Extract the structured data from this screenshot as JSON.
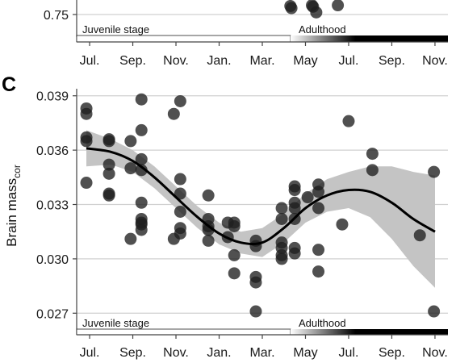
{
  "panel_top": {
    "y_tick_labels": [
      "0.75"
    ],
    "stage_labels": {
      "juvenile": "Juvenile stage",
      "adult": "Adulthood"
    },
    "x_tick_labels": [
      "Jul.",
      "Sep.",
      "Nov.",
      "Jan.",
      "Mar.",
      "May",
      "Jul.",
      "Sep.",
      "Nov."
    ]
  },
  "panel_c": {
    "letter": "C",
    "ylabel_main": "Brain mass",
    "ylabel_sub": "cor",
    "stage_labels": {
      "juvenile": "Juvenile stage",
      "adult": "Adulthood"
    }
  },
  "chart_data": [
    {
      "type": "scatter",
      "panel": "top (partially visible)",
      "ylim_visible": [
        0.745,
        0.76
      ],
      "y_ticks": [
        0.75
      ],
      "x": [
        9.3,
        9.35,
        10.3,
        10.35,
        10.5,
        11.5
      ],
      "y": [
        0.756,
        0.7545,
        0.7565,
        0.7555,
        0.7515,
        0.7565
      ]
    },
    {
      "type": "scatter",
      "panel": "C",
      "xlabel": "",
      "ylabel": "Brain masscor",
      "x_ticks": [
        0,
        2,
        4,
        6,
        8,
        10,
        12,
        14,
        16
      ],
      "x_tick_labels": [
        "Jul.",
        "Sep.",
        "Nov.",
        "Jan.",
        "Mar.",
        "May",
        "Jul.",
        "Sep.",
        "Nov."
      ],
      "y_ticks": [
        0.027,
        0.03,
        0.033,
        0.036,
        0.039
      ],
      "xlim": [
        -0.6,
        16.6
      ],
      "ylim": [
        0.0263,
        0.0393
      ],
      "grid": true,
      "points": [
        [
          -0.15,
          0.0383
        ],
        [
          -0.15,
          0.038
        ],
        [
          -0.15,
          0.0367
        ],
        [
          -0.15,
          0.0365
        ],
        [
          -0.15,
          0.0342
        ],
        [
          0.9,
          0.0366
        ],
        [
          0.9,
          0.0365
        ],
        [
          0.9,
          0.0352
        ],
        [
          0.9,
          0.0347
        ],
        [
          0.9,
          0.0336
        ],
        [
          0.9,
          0.0335
        ],
        [
          1.9,
          0.0365
        ],
        [
          1.9,
          0.035
        ],
        [
          1.9,
          0.0311
        ],
        [
          2.4,
          0.0388
        ],
        [
          2.4,
          0.0371
        ],
        [
          2.4,
          0.0355
        ],
        [
          2.4,
          0.0349
        ],
        [
          2.4,
          0.0331
        ],
        [
          2.4,
          0.0322
        ],
        [
          2.4,
          0.032
        ],
        [
          2.4,
          0.0319
        ],
        [
          2.4,
          0.0316
        ],
        [
          3.9,
          0.038
        ],
        [
          3.9,
          0.0311
        ],
        [
          4.2,
          0.0387
        ],
        [
          4.2,
          0.0344
        ],
        [
          4.2,
          0.0336
        ],
        [
          4.2,
          0.0326
        ],
        [
          4.2,
          0.0317
        ],
        [
          4.2,
          0.0314
        ],
        [
          5.5,
          0.0335
        ],
        [
          5.5,
          0.0322
        ],
        [
          5.5,
          0.0318
        ],
        [
          5.5,
          0.0316
        ],
        [
          5.5,
          0.031
        ],
        [
          6.4,
          0.032
        ],
        [
          6.4,
          0.0312
        ],
        [
          6.7,
          0.032
        ],
        [
          6.7,
          0.0318
        ],
        [
          6.7,
          0.0302
        ],
        [
          6.7,
          0.0292
        ],
        [
          7.7,
          0.031
        ],
        [
          7.7,
          0.0307
        ],
        [
          7.7,
          0.029
        ],
        [
          7.7,
          0.0287
        ],
        [
          7.7,
          0.0271
        ],
        [
          8.9,
          0.0328
        ],
        [
          8.9,
          0.0322
        ],
        [
          8.9,
          0.0309
        ],
        [
          8.9,
          0.0306
        ],
        [
          8.9,
          0.0302
        ],
        [
          8.9,
          0.03
        ],
        [
          9.5,
          0.034
        ],
        [
          9.5,
          0.0338
        ],
        [
          9.5,
          0.0331
        ],
        [
          9.5,
          0.0328
        ],
        [
          9.5,
          0.0322
        ],
        [
          9.5,
          0.0306
        ],
        [
          9.5,
          0.0303
        ],
        [
          10.1,
          0.0334
        ],
        [
          10.6,
          0.0341
        ],
        [
          10.6,
          0.0337
        ],
        [
          10.6,
          0.0328
        ],
        [
          10.6,
          0.0305
        ],
        [
          10.6,
          0.0293
        ],
        [
          11.7,
          0.0319
        ],
        [
          12.0,
          0.0376
        ],
        [
          13.1,
          0.0358
        ],
        [
          13.1,
          0.0349
        ],
        [
          15.3,
          0.0313
        ],
        [
          15.95,
          0.0348
        ],
        [
          15.95,
          0.0271
        ]
      ],
      "smooth_fit": {
        "x": [
          -0.15,
          1,
          2,
          3,
          4,
          5,
          6,
          7,
          8,
          9,
          10,
          11,
          12,
          13,
          14,
          15,
          16
        ],
        "y": [
          0.0361,
          0.0359,
          0.0354,
          0.0345,
          0.0334,
          0.0323,
          0.0314,
          0.0309,
          0.0309,
          0.0317,
          0.0328,
          0.0335,
          0.0338,
          0.0337,
          0.0331,
          0.0322,
          0.0315
        ],
        "ci_lower": [
          0.0351,
          0.0352,
          0.0348,
          0.0339,
          0.0328,
          0.0317,
          0.0308,
          0.0303,
          0.0301,
          0.0309,
          0.032,
          0.0326,
          0.0328,
          0.0323,
          0.0311,
          0.0296,
          0.0284
        ],
        "ci_upper": [
          0.0371,
          0.0366,
          0.036,
          0.0351,
          0.034,
          0.0329,
          0.032,
          0.0315,
          0.0317,
          0.0325,
          0.0336,
          0.0344,
          0.0348,
          0.0351,
          0.0351,
          0.0348,
          0.0346
        ]
      },
      "stage_bar": {
        "juvenile_end": 9.2,
        "gradient_end": 12.0
      }
    }
  ],
  "colors": {
    "point_fill": "#1f1f1f",
    "point_opacity": 0.78,
    "fit_line": "#000000",
    "ci_band": "#c4c4c4",
    "grid": "#d0d0d0"
  }
}
